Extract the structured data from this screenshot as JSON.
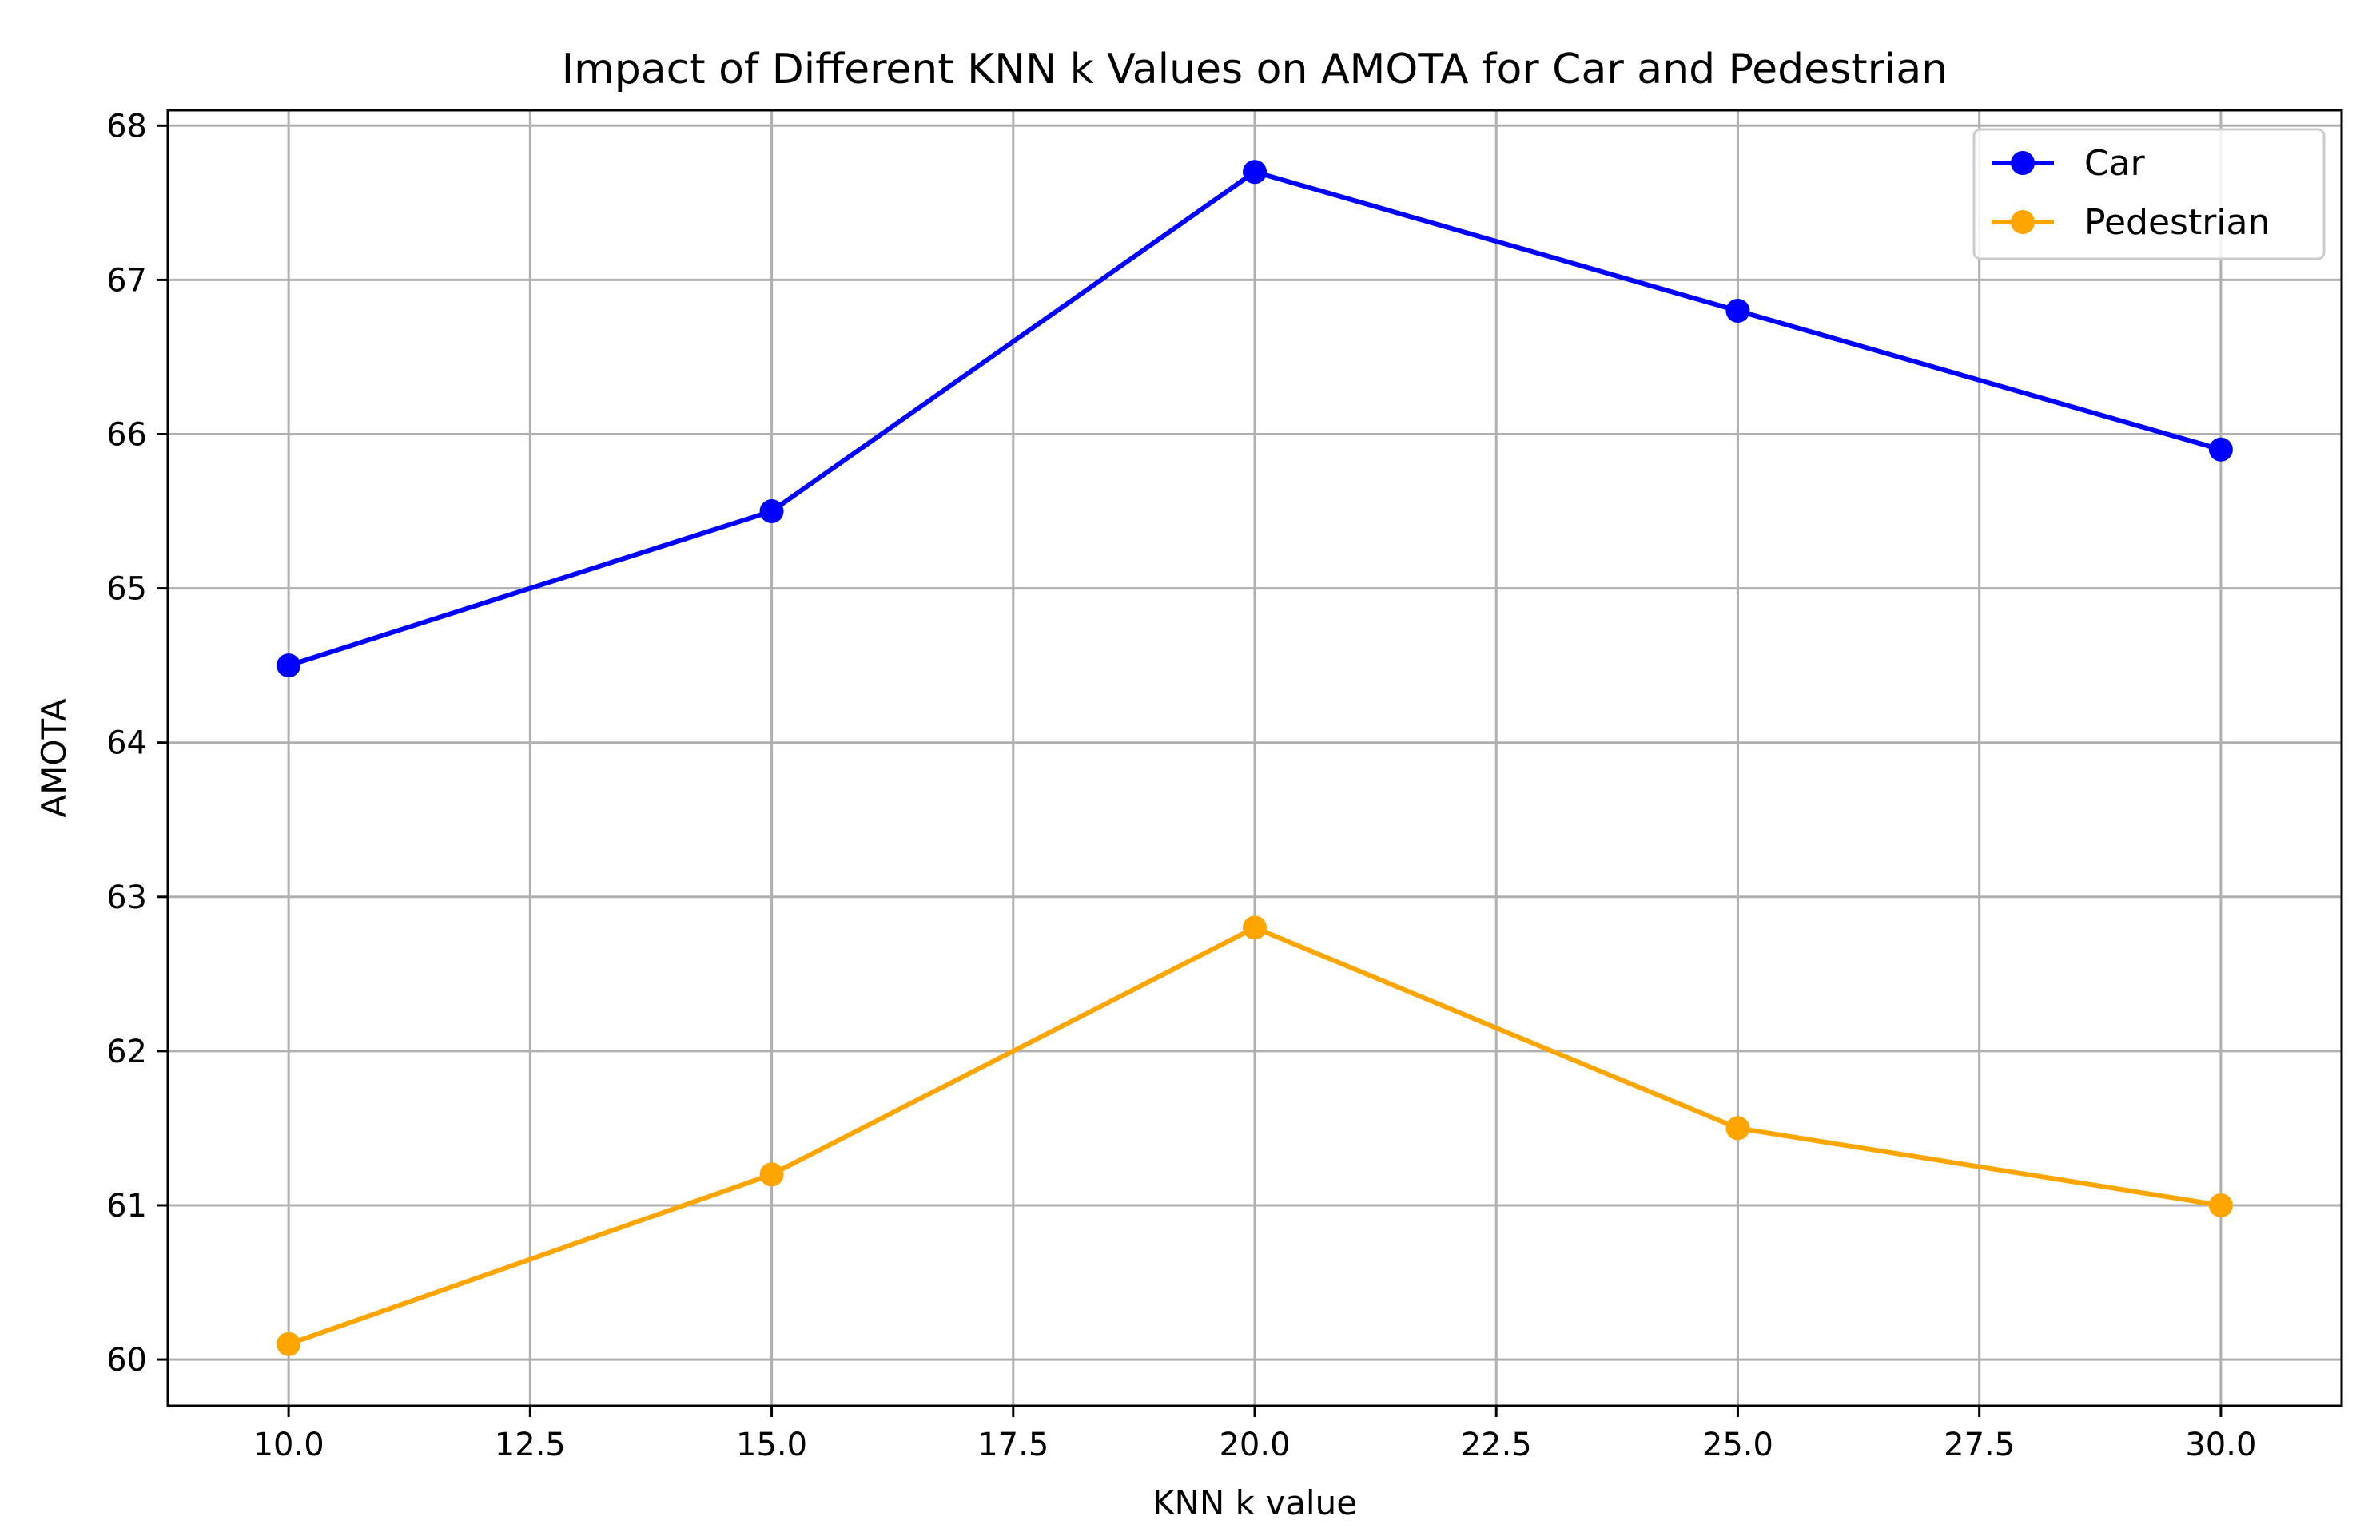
{
  "chart_data": {
    "type": "line",
    "title": "Impact of Different KNN k Values on AMOTA for Car and Pedestrian",
    "xlabel": "KNN k value",
    "ylabel": "AMOTA",
    "xlim": [
      8.75,
      31.25
    ],
    "ylim": [
      59.7,
      68.1
    ],
    "xticks": [
      10.0,
      12.5,
      15.0,
      17.5,
      20.0,
      22.5,
      25.0,
      27.5,
      30.0
    ],
    "xtick_labels": [
      "10.0",
      "12.5",
      "15.0",
      "17.5",
      "20.0",
      "22.5",
      "25.0",
      "27.5",
      "30.0"
    ],
    "yticks": [
      60,
      61,
      62,
      63,
      64,
      65,
      66,
      67,
      68
    ],
    "ytick_labels": [
      "60",
      "61",
      "62",
      "63",
      "64",
      "65",
      "66",
      "67",
      "68"
    ],
    "grid": true,
    "legend_position": "top-right",
    "x": [
      10,
      15,
      20,
      25,
      30
    ],
    "series": [
      {
        "name": "Car",
        "color": "#0000ff",
        "values": [
          64.5,
          65.5,
          67.7,
          66.8,
          65.9
        ]
      },
      {
        "name": "Pedestrian",
        "color": "#ffa500",
        "values": [
          60.1,
          61.2,
          62.8,
          61.5,
          61.0
        ]
      }
    ]
  }
}
